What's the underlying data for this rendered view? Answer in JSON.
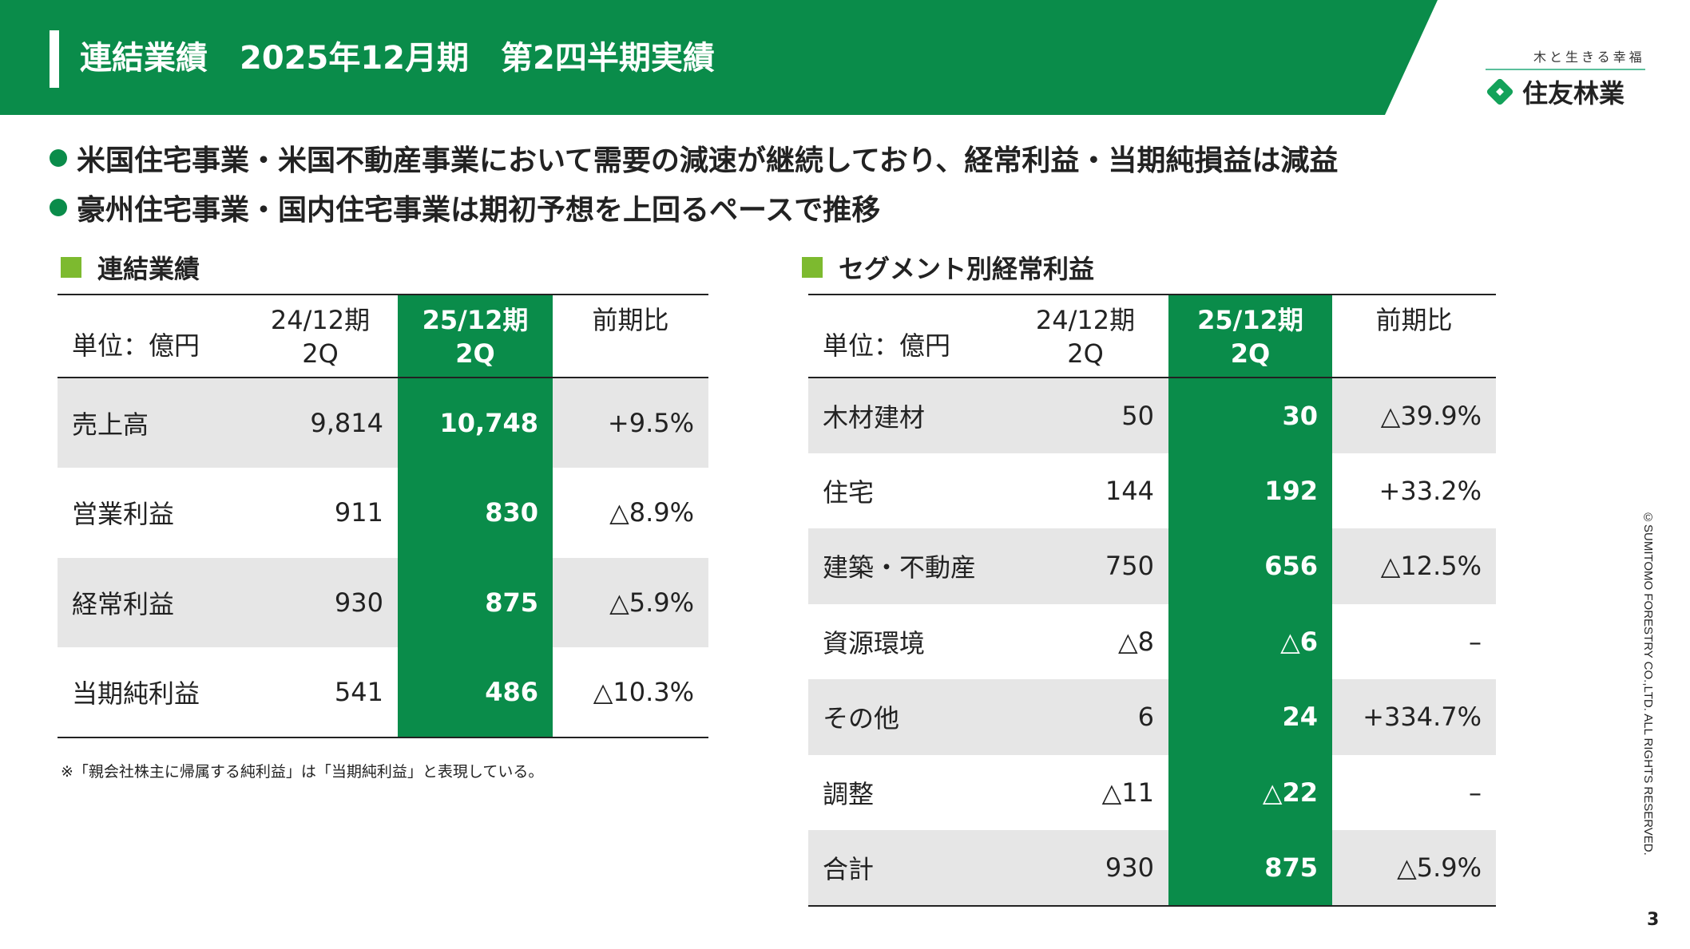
{
  "header": {
    "title": "連結業績　2025年12月期　第2四半期実績"
  },
  "logo": {
    "tagline": "木と生きる幸福",
    "name": "住友林業",
    "brand_color": "#0a8c4a"
  },
  "bullets": [
    "米国住宅事業・米国不動産事業において需要の減速が継続しており、経常利益・当期純損益は減益",
    "豪州住宅事業・国内住宅事業は期初予想を上回るペースで推移"
  ],
  "left": {
    "title": "連結業績",
    "headers": [
      "単位：億円",
      "24/12期\n2Q",
      "25/12期\n2Q",
      "前期比"
    ],
    "rows": [
      [
        "売上高",
        "9,814",
        "10,748",
        "+9.5%"
      ],
      [
        "営業利益",
        "911",
        "830",
        "△8.9%"
      ],
      [
        "経常利益",
        "930",
        "875",
        "△5.9%"
      ],
      [
        "当期純利益",
        "541",
        "486",
        "△10.3%"
      ]
    ],
    "note": "※「親会社株主に帰属する純利益」は「当期純利益」と表現している。"
  },
  "right": {
    "title": "セグメント別経常利益",
    "headers": [
      "単位：億円",
      "24/12期\n2Q",
      "25/12期\n2Q",
      "前期比"
    ],
    "rows": [
      [
        "木材建材",
        "50",
        "30",
        "△39.9%"
      ],
      [
        "住宅",
        "144",
        "192",
        "+33.2%"
      ],
      [
        "建築・不動産",
        "750",
        "656",
        "△12.5%"
      ],
      [
        "資源環境",
        "△8",
        "△6",
        "–"
      ],
      [
        "その他",
        "6",
        "24",
        "+334.7%"
      ],
      [
        "調整",
        "△11",
        "△22",
        "–"
      ],
      [
        "合計",
        "930",
        "875",
        "△5.9%"
      ]
    ]
  },
  "footer": {
    "copyright": "©SUMITOMO FORESTRY CO.,LTD. ALL RIGHTS RESERVED.",
    "page": "3"
  }
}
